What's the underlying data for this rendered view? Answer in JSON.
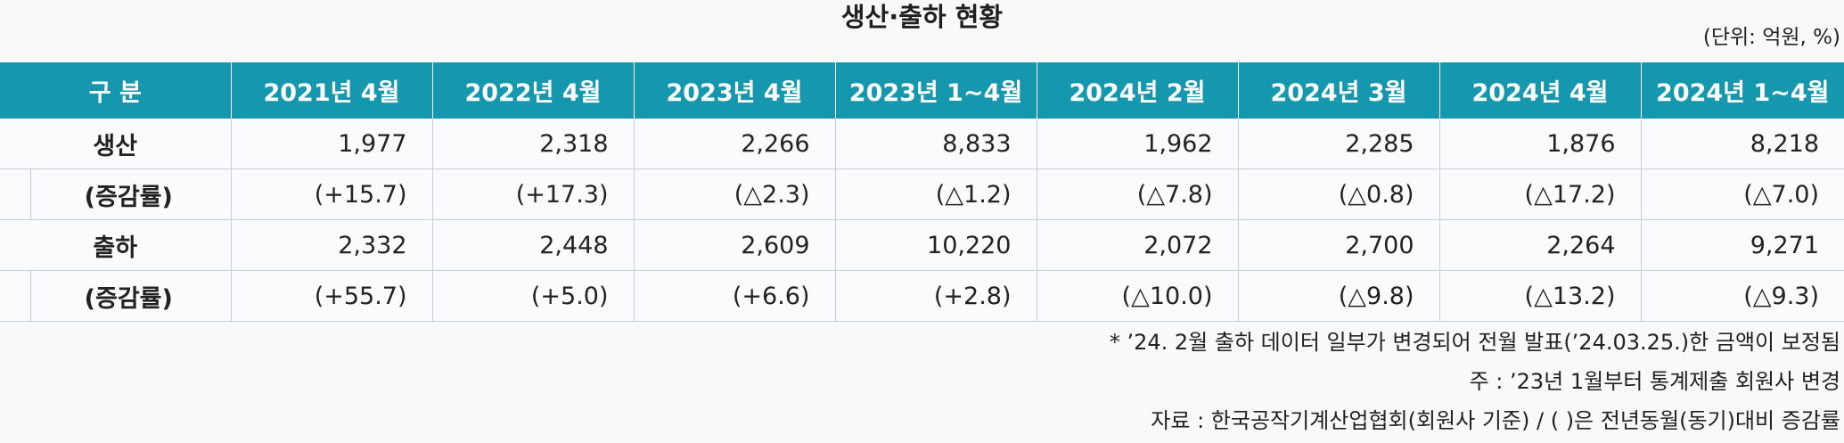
{
  "title": "생산·출하 현황",
  "unit": "(단위: 억원, %)",
  "table": {
    "headers": [
      "구 분",
      "2021년 4월",
      "2022년 4월",
      "2023년 4월",
      "2023년 1~4월",
      "2024년 2월",
      "2024년 3월",
      "2024년 4월",
      "2024년 1~4월"
    ],
    "rows": [
      {
        "label": "생산",
        "sub": false,
        "values": [
          "1,977",
          "2,318",
          "2,266",
          "8,833",
          "1,962",
          "2,285",
          "1,876",
          "8,218"
        ]
      },
      {
        "label": "(증감률)",
        "sub": true,
        "values": [
          "(+15.7)",
          "(+17.3)",
          "(△2.3)",
          "(△1.2)",
          "(△7.8)",
          "(△0.8)",
          "(△17.2)",
          "(△7.0)"
        ]
      },
      {
        "label": "출하",
        "sub": false,
        "values": [
          "2,332",
          "2,448",
          "2,609",
          "10,220",
          "2,072",
          "2,700",
          "2,264",
          "9,271"
        ]
      },
      {
        "label": "(증감률)",
        "sub": true,
        "values": [
          "(+55.7)",
          "(+5.0)",
          "(+6.6)",
          "(+2.8)",
          "(△10.0)",
          "(△9.8)",
          "(△13.2)",
          "(△9.3)"
        ]
      }
    ]
  },
  "notes": [
    "* ’24. 2월 출하 데이터 일부가 변경되어 전월 발표(’24.03.25.)한 금액이 보정됨",
    "주 : ’23년 1월부터 통계제출 회원사 변경",
    "자료 : 한국공작기계산업협회(회원사 기준) / ( )은 전년동월(동기)대비 증감률"
  ]
}
